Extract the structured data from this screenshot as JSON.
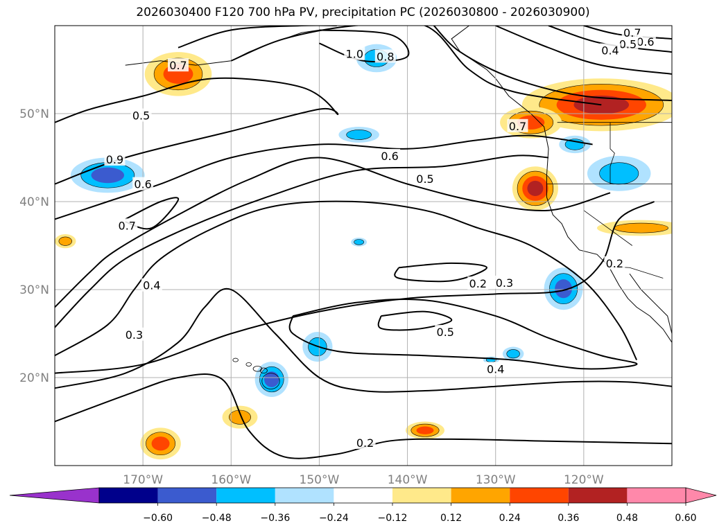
{
  "title": "2026030400 F120 700 hPa PV, precipitation PC (2026030800 - 2026030900)",
  "map": {
    "lat_labels": [
      "50°N",
      "40°N",
      "30°N",
      "20°N"
    ],
    "lon_labels": [
      "170°W",
      "160°W",
      "150°W",
      "140°W",
      "130°W",
      "120°W"
    ],
    "label_color": "#808080",
    "grid_color": "#b0b0b0"
  },
  "contour_labels": [
    {
      "text": "0.7",
      "lon": -166.0,
      "lat": 55.5
    },
    {
      "text": "0.5",
      "lon": -170.2,
      "lat": 49.8
    },
    {
      "text": "1.0",
      "lon": -146.0,
      "lat": 56.8
    },
    {
      "text": "0.8",
      "lon": -142.5,
      "lat": 56.5
    },
    {
      "text": "0.7",
      "lon": -114.5,
      "lat": 59.2
    },
    {
      "text": "0.6",
      "lon": -113.0,
      "lat": 58.2
    },
    {
      "text": "0.5",
      "lon": -115.0,
      "lat": 57.9
    },
    {
      "text": "0.4",
      "lon": -117.0,
      "lat": 57.2
    },
    {
      "text": "0.6",
      "lon": -142.0,
      "lat": 45.2
    },
    {
      "text": "0.5",
      "lon": -138.0,
      "lat": 42.6
    },
    {
      "text": "0.9",
      "lon": -173.2,
      "lat": 44.8
    },
    {
      "text": "0.6",
      "lon": -170.0,
      "lat": 42.0
    },
    {
      "text": "0.7",
      "lon": -171.8,
      "lat": 37.3
    },
    {
      "text": "0.7",
      "lon": -127.5,
      "lat": 48.6
    },
    {
      "text": "0.2",
      "lon": -116.5,
      "lat": 33.0
    },
    {
      "text": "0.3",
      "lon": -129.0,
      "lat": 30.8
    },
    {
      "text": "0.2",
      "lon": -132.0,
      "lat": 30.7
    },
    {
      "text": "0.4",
      "lon": -169.0,
      "lat": 30.5
    },
    {
      "text": "0.3",
      "lon": -171.0,
      "lat": 24.9
    },
    {
      "text": "0.5",
      "lon": -135.7,
      "lat": 25.2
    },
    {
      "text": "0.4",
      "lon": -130.0,
      "lat": 21.0
    },
    {
      "text": "0.2",
      "lon": -144.8,
      "lat": 12.6
    }
  ],
  "contours": [
    {
      "level": "0.4",
      "points": [
        [
          -180,
          20.5
        ],
        [
          -170,
          21.5
        ],
        [
          -160,
          25
        ],
        [
          -150,
          27.5
        ],
        [
          -140,
          29
        ],
        [
          -130,
          29.5
        ],
        [
          -122,
          30
        ],
        [
          -118,
          33
        ],
        [
          -116,
          38
        ],
        [
          -112,
          40
        ]
      ]
    },
    {
      "level": "0.3",
      "points": [
        [
          -180,
          18.8
        ],
        [
          -172,
          20.5
        ],
        [
          -166,
          24
        ],
        [
          -163,
          28
        ],
        [
          -160,
          30
        ],
        [
          -155,
          25
        ],
        [
          -150,
          20
        ],
        [
          -145,
          18.5
        ],
        [
          -138,
          18.5
        ],
        [
          -130,
          19
        ],
        [
          -122,
          19.5
        ],
        [
          -115,
          19.5
        ],
        [
          -110,
          19
        ]
      ]
    },
    {
      "level": "0.3b",
      "points": [
        [
          -180,
          22.5
        ],
        [
          -174,
          26
        ],
        [
          -171,
          30
        ],
        [
          -168,
          33.5
        ],
        [
          -162,
          37
        ],
        [
          -155,
          39.5
        ],
        [
          -146,
          40
        ],
        [
          -138,
          39
        ],
        [
          -132,
          37
        ],
        [
          -126,
          35
        ],
        [
          -120,
          31
        ],
        [
          -116,
          26
        ],
        [
          -114,
          22
        ]
      ]
    },
    {
      "level": "0.2",
      "points": [
        [
          -180,
          15
        ],
        [
          -172,
          18
        ],
        [
          -166,
          20
        ],
        [
          -161,
          19.8
        ],
        [
          -158,
          14
        ],
        [
          -154,
          11
        ],
        [
          -148,
          11.3
        ],
        [
          -142,
          12.8
        ],
        [
          -135,
          13
        ],
        [
          -125,
          12.8
        ],
        [
          -115,
          12.6
        ],
        [
          -110,
          12.5
        ]
      ]
    },
    {
      "level": "0.4b",
      "points": [
        [
          -180,
          25.7
        ],
        [
          -176,
          30
        ],
        [
          -172,
          33.5
        ],
        [
          -165,
          37
        ],
        [
          -156,
          40.5
        ],
        [
          -146,
          43.5
        ],
        [
          -136,
          44
        ],
        [
          -128,
          45.2
        ],
        [
          -124,
          45
        ]
      ]
    },
    {
      "level": "0.5",
      "points": [
        [
          -180,
          28
        ],
        [
          -176,
          32
        ],
        [
          -173,
          34.5
        ],
        [
          -166,
          38.5
        ],
        [
          -158,
          42.5
        ],
        [
          -150,
          45
        ],
        [
          -140,
          42
        ],
        [
          -132,
          40
        ],
        [
          -124,
          39
        ],
        [
          -117,
          41
        ]
      ]
    },
    {
      "level": "0.6",
      "points": [
        [
          -180,
          38
        ],
        [
          -174,
          40
        ],
        [
          -168,
          42
        ],
        [
          -160,
          45
        ],
        [
          -150,
          46.5
        ],
        [
          -140,
          46
        ],
        [
          -132,
          47
        ],
        [
          -126,
          47.5
        ],
        [
          -119,
          46.5
        ]
      ]
    },
    {
      "level": "0.7",
      "points": [
        [
          -172,
          38
        ],
        [
          -168,
          40
        ],
        [
          -166,
          40.2
        ],
        [
          -169,
          37
        ],
        [
          -172,
          37.7
        ]
      ]
    },
    {
      "level": "0.5b",
      "points": [
        [
          -180,
          42
        ],
        [
          -172,
          45
        ],
        [
          -160,
          48
        ],
        [
          -150,
          50.5
        ],
        [
          -148,
          50
        ],
        [
          -152,
          53
        ],
        [
          -162,
          54
        ],
        [
          -170,
          52
        ],
        [
          -176,
          50.5
        ],
        [
          -180,
          49
        ]
      ]
    },
    {
      "level": "1.0",
      "points": [
        [
          -150,
          58
        ],
        [
          -145,
          56
        ],
        [
          -140,
          56.5
        ],
        [
          -142,
          59
        ],
        [
          -150,
          59.5
        ]
      ]
    },
    {
      "level": "0.8",
      "points": [
        [
          -160,
          56
        ],
        [
          -154,
          58.5
        ],
        [
          -146,
          60
        ],
        [
          -138,
          60
        ],
        [
          -133,
          55
        ],
        [
          -128,
          52.5
        ],
        [
          -118,
          51
        ]
      ]
    },
    {
      "level": "0.9",
      "points": [
        [
          -166,
          57.5
        ],
        [
          -160,
          59.5
        ],
        [
          -152,
          60
        ],
        [
          -148,
          60
        ]
      ]
    },
    {
      "level": "0.7b",
      "points": [
        [
          -137,
          60
        ],
        [
          -134,
          57
        ],
        [
          -128,
          54
        ],
        [
          -120,
          52
        ],
        [
          -110,
          51.5
        ]
      ]
    },
    {
      "level": "0.6b",
      "points": [
        [
          -130,
          60
        ],
        [
          -124,
          57.5
        ],
        [
          -118,
          55.5
        ],
        [
          -110,
          54.5
        ]
      ]
    },
    {
      "level": "0.5c",
      "points": [
        [
          -124,
          60
        ],
        [
          -118,
          58
        ],
        [
          -110,
          57
        ]
      ]
    },
    {
      "level": "0.4c",
      "points": [
        [
          -120,
          60
        ],
        [
          -116,
          59
        ],
        [
          -110,
          58.5
        ]
      ]
    },
    {
      "level": "0.2b",
      "points": [
        [
          -141,
          32.5
        ],
        [
          -135,
          33
        ],
        [
          -131,
          32.5
        ],
        [
          -135,
          31
        ],
        [
          -141,
          31.3
        ],
        [
          -141,
          32.5
        ]
      ]
    },
    {
      "level": "0.5d",
      "points": [
        [
          -143,
          27
        ],
        [
          -138,
          27.5
        ],
        [
          -135,
          26.5
        ],
        [
          -139,
          25.5
        ],
        [
          -143,
          25.6
        ],
        [
          -143,
          27
        ]
      ]
    },
    {
      "level": "0.4d",
      "points": [
        [
          -153,
          27
        ],
        [
          -146,
          28.5
        ],
        [
          -138,
          28.8
        ],
        [
          -130,
          27
        ],
        [
          -124,
          24.5
        ],
        [
          -118,
          22.5
        ],
        [
          -114,
          21.5
        ],
        [
          -120,
          21
        ],
        [
          -128,
          22
        ],
        [
          -138,
          22.5
        ],
        [
          -148,
          23
        ],
        [
          -153,
          25
        ],
        [
          -153,
          27
        ]
      ]
    }
  ],
  "precip_cells": [
    {
      "lon": -166.0,
      "lat": 54.5,
      "rx": 3.8,
      "ry": 2.5,
      "level": 3
    },
    {
      "lon": -174.0,
      "lat": 43.0,
      "rx": 4.2,
      "ry": 2.0,
      "level": -3
    },
    {
      "lon": -143.5,
      "lat": 56.3,
      "rx": 2.3,
      "ry": 1.6,
      "level": -2
    },
    {
      "lon": -145.5,
      "lat": 47.6,
      "rx": 2.3,
      "ry": 0.9,
      "level": -2
    },
    {
      "lon": -118.0,
      "lat": 51.0,
      "rx": 9.0,
      "ry": 3.0,
      "level": 4
    },
    {
      "lon": -126.0,
      "lat": 49.0,
      "rx": 3.5,
      "ry": 1.8,
      "level": 3
    },
    {
      "lon": -125.5,
      "lat": 41.5,
      "rx": 2.6,
      "ry": 2.5,
      "level": 4
    },
    {
      "lon": -121.0,
      "lat": 46.5,
      "rx": 1.8,
      "ry": 1.0,
      "level": -2
    },
    {
      "lon": -116.0,
      "lat": 43.2,
      "rx": 3.6,
      "ry": 2.0,
      "level": -2
    },
    {
      "lon": -113.5,
      "lat": 37.0,
      "rx": 5.0,
      "ry": 0.9,
      "level": 2
    },
    {
      "lon": -178.8,
      "lat": 35.5,
      "rx": 1.2,
      "ry": 0.8,
      "level": 2
    },
    {
      "lon": -145.5,
      "lat": 35.4,
      "rx": 0.9,
      "ry": 0.5,
      "level": -2
    },
    {
      "lon": -122.3,
      "lat": 30.1,
      "rx": 2.2,
      "ry": 2.4,
      "level": -3
    },
    {
      "lon": -155.4,
      "lat": 19.8,
      "rx": 1.9,
      "ry": 2.0,
      "level": -3
    },
    {
      "lon": -150.2,
      "lat": 23.5,
      "rx": 1.7,
      "ry": 1.7,
      "level": -2
    },
    {
      "lon": -128.0,
      "lat": 22.7,
      "rx": 1.2,
      "ry": 0.8,
      "level": -2
    },
    {
      "lon": -130.5,
      "lat": 22.0,
      "rx": 0.9,
      "ry": 0.4,
      "level": -2
    },
    {
      "lon": -159.0,
      "lat": 15.5,
      "rx": 2.0,
      "ry": 1.3,
      "level": 2
    },
    {
      "lon": -138.0,
      "lat": 14.0,
      "rx": 2.2,
      "ry": 1.0,
      "level": 3
    },
    {
      "lon": -168.0,
      "lat": 12.5,
      "rx": 2.3,
      "ry": 1.8,
      "level": 3
    }
  ],
  "colorbar": {
    "ticks": [
      "−0.60",
      "−0.48",
      "−0.36",
      "−0.24",
      "−0.12",
      "0.12",
      "0.24",
      "0.36",
      "0.48",
      "0.60"
    ],
    "colors": [
      "#9932cc",
      "#00008b",
      "#3b5bcf",
      "#00bfff",
      "#b0e2ff",
      "#ffffff",
      "#ffe98a",
      "#ffa500",
      "#ff4500",
      "#b22222",
      "#ff88aa"
    ]
  }
}
